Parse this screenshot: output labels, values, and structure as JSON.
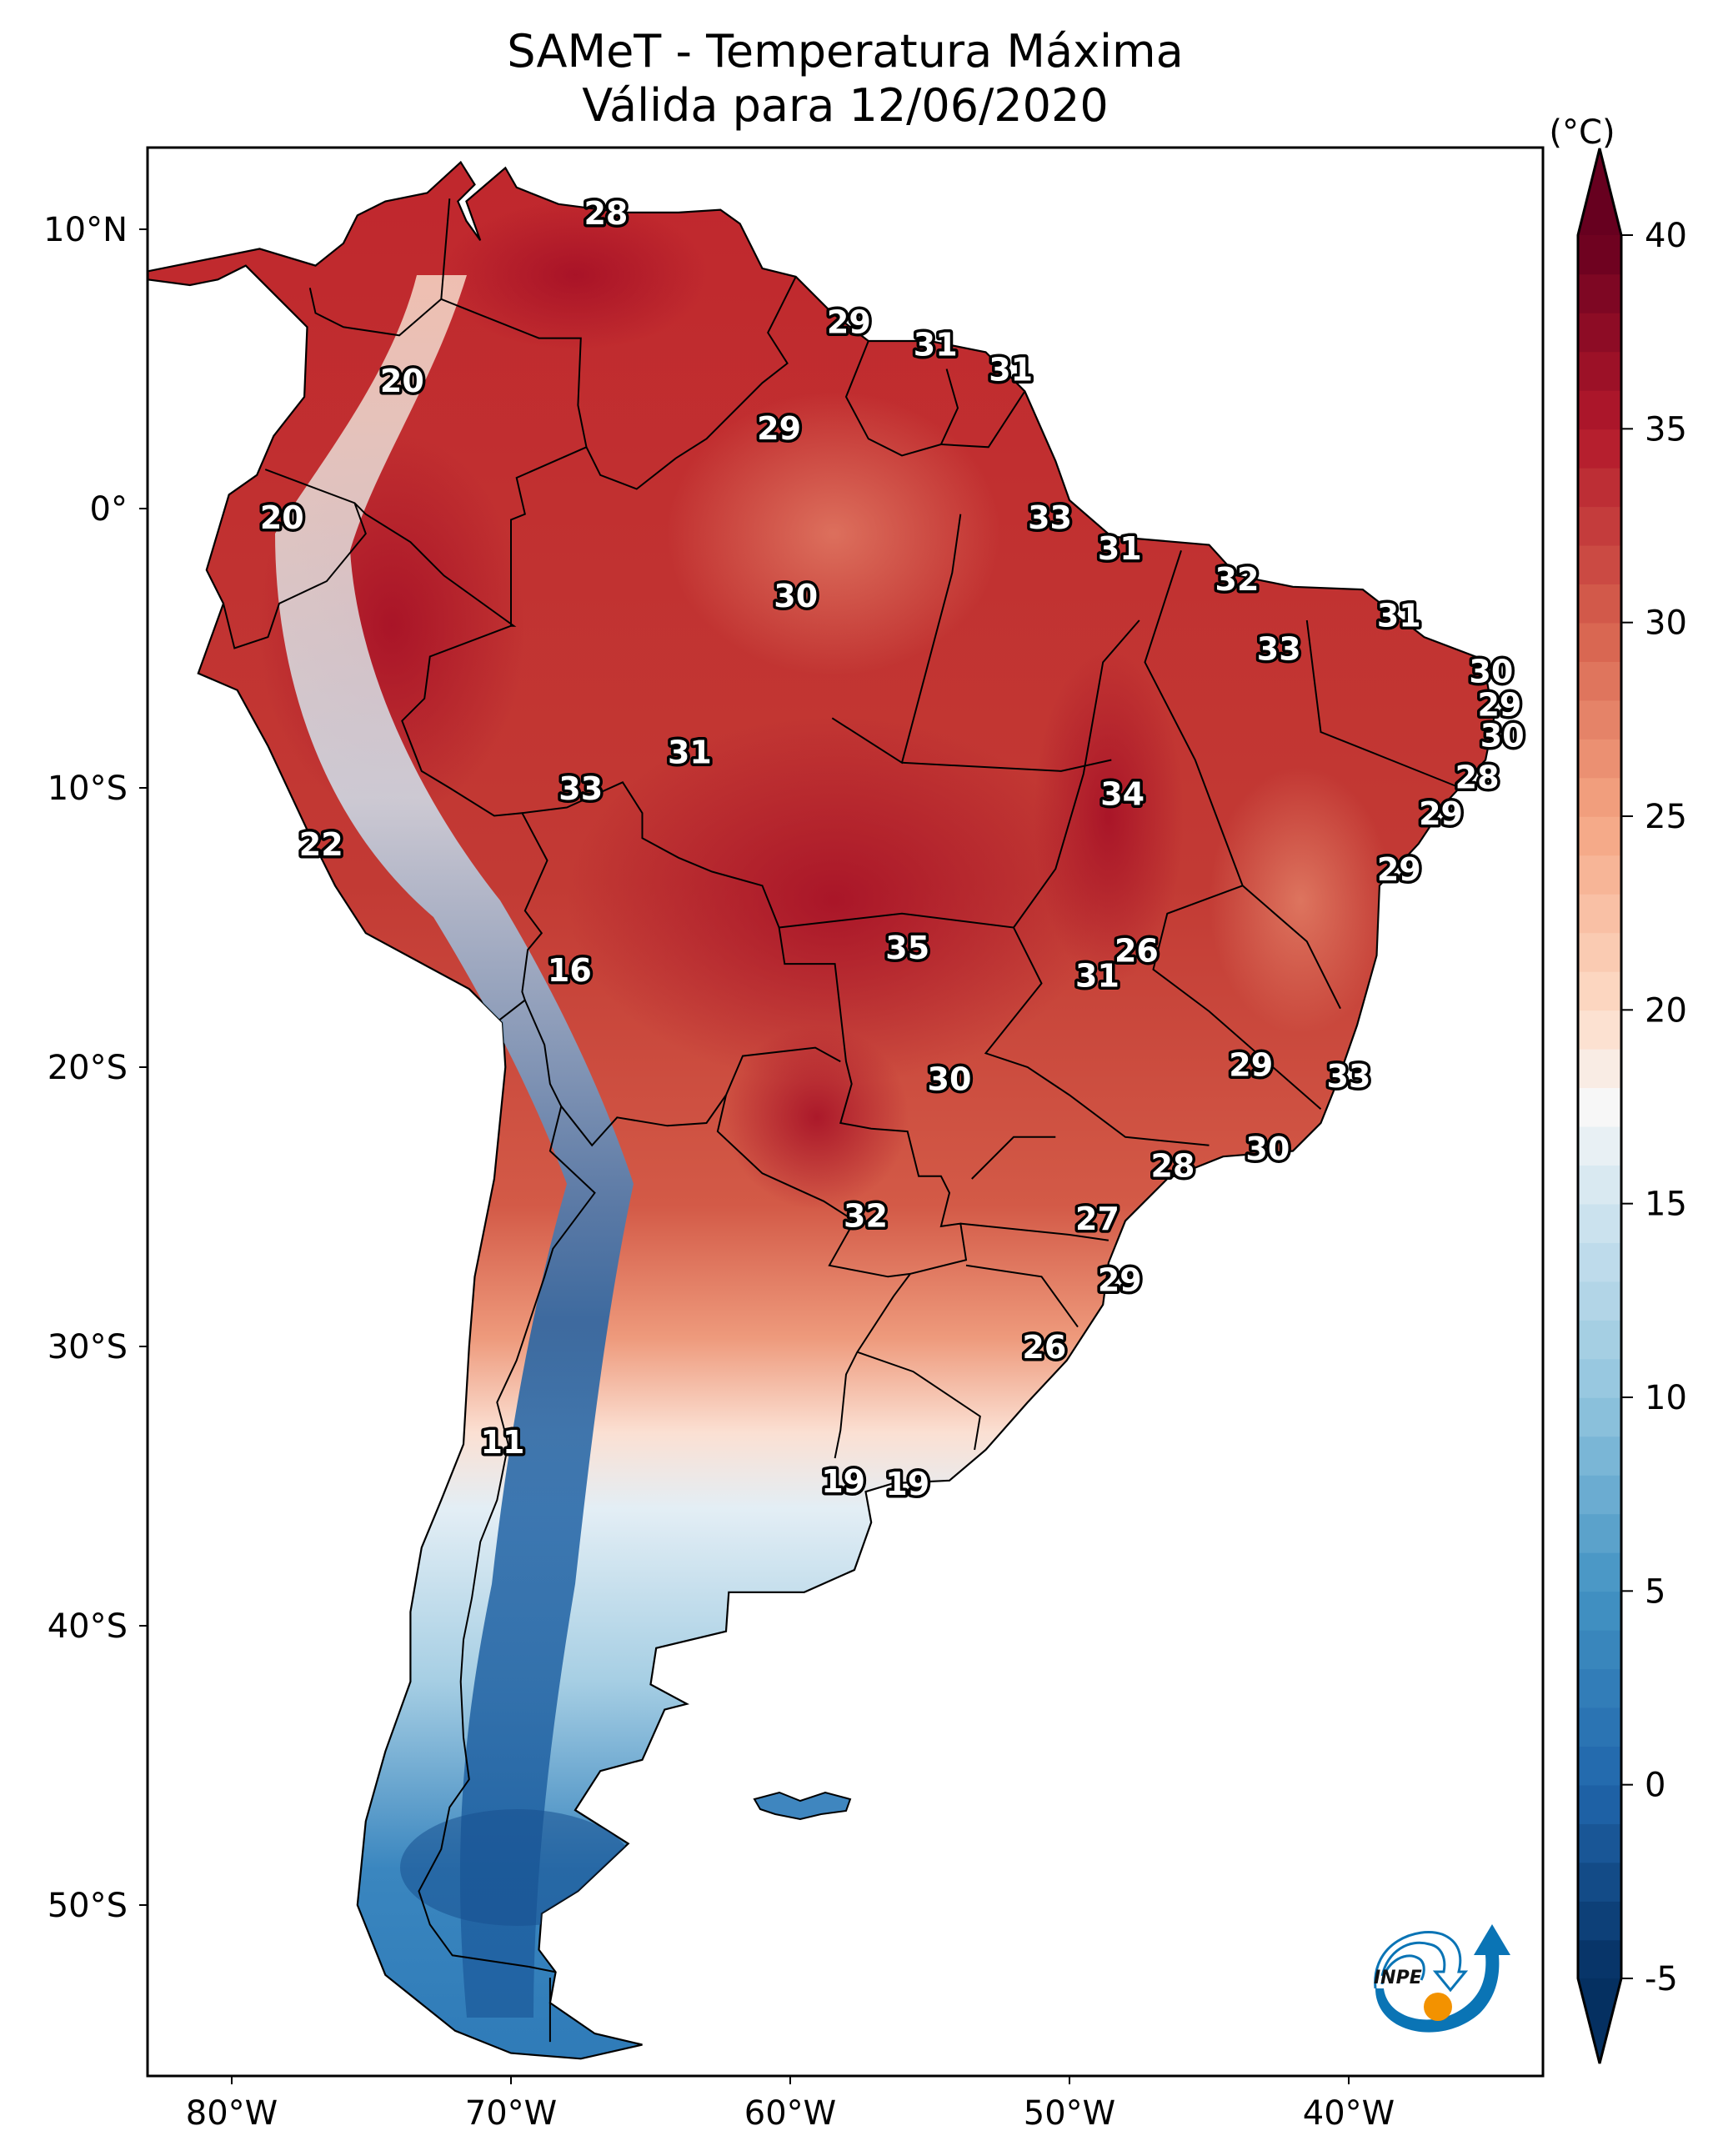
{
  "chart_data": {
    "type": "heatmap",
    "title": "SAMeT - Temperatura Máxima",
    "subtitle": "Válida para 12/06/2020",
    "variable": "Maximum temperature",
    "units_label": "(°C)",
    "xlabel": "",
    "ylabel": "",
    "xlim": [
      -83,
      -33
    ],
    "ylim": [
      -56,
      13
    ],
    "x_ticks": [
      -80,
      -70,
      -60,
      -50,
      -40
    ],
    "x_tick_labels": [
      "80°W",
      "70°W",
      "60°W",
      "50°W",
      "40°W"
    ],
    "y_ticks": [
      10,
      0,
      -10,
      -20,
      -30,
      -40,
      -50
    ],
    "y_tick_labels": [
      "10°N",
      "0°",
      "10°S",
      "20°S",
      "30°S",
      "40°S",
      "50°S"
    ],
    "grid": false,
    "colorbar": {
      "label": "(°C)",
      "colormap": "RdBu_r",
      "vmin": -5,
      "vmax": 40,
      "extend": "both",
      "ticks": [
        -5,
        0,
        5,
        10,
        15,
        20,
        25,
        30,
        35,
        40
      ],
      "tick_labels": [
        "-5",
        "0",
        "5",
        "10",
        "15",
        "20",
        "25",
        "30",
        "35",
        "40"
      ],
      "placement": "right",
      "stops": [
        {
          "value": -5,
          "color": "#053061"
        },
        {
          "value": 0,
          "color": "#2166ac"
        },
        {
          "value": 5,
          "color": "#4393c3"
        },
        {
          "value": 10,
          "color": "#92c5de"
        },
        {
          "value": 15,
          "color": "#d1e5f0"
        },
        {
          "value": 17.5,
          "color": "#f7f7f7"
        },
        {
          "value": 20,
          "color": "#fddbc7"
        },
        {
          "value": 25,
          "color": "#f4a582"
        },
        {
          "value": 30,
          "color": "#d6604d"
        },
        {
          "value": 35,
          "color": "#b2182b"
        },
        {
          "value": 40,
          "color": "#67001f"
        }
      ]
    },
    "point_labels": [
      {
        "lon": -66.6,
        "lat": 10.6,
        "value": 28
      },
      {
        "lon": -73.9,
        "lat": 4.6,
        "value": 20
      },
      {
        "lon": -57.9,
        "lat": 6.7,
        "value": 29
      },
      {
        "lon": -54.8,
        "lat": 5.9,
        "value": 31
      },
      {
        "lon": -52.1,
        "lat": 5.0,
        "value": 31
      },
      {
        "lon": -60.4,
        "lat": 2.9,
        "value": 29
      },
      {
        "lon": -78.2,
        "lat": -0.3,
        "value": 20
      },
      {
        "lon": -50.7,
        "lat": -0.3,
        "value": 33
      },
      {
        "lon": -48.2,
        "lat": -1.4,
        "value": 31
      },
      {
        "lon": -59.8,
        "lat": -3.1,
        "value": 30
      },
      {
        "lon": -44.0,
        "lat": -2.5,
        "value": 32
      },
      {
        "lon": -38.2,
        "lat": -3.8,
        "value": 31
      },
      {
        "lon": -42.5,
        "lat": -5.0,
        "value": 33
      },
      {
        "lon": -34.9,
        "lat": -5.8,
        "value": 30
      },
      {
        "lon": -34.6,
        "lat": -7.0,
        "value": 29
      },
      {
        "lon": -34.5,
        "lat": -8.1,
        "value": 30
      },
      {
        "lon": -63.6,
        "lat": -8.7,
        "value": 31
      },
      {
        "lon": -67.5,
        "lat": -10.0,
        "value": 33
      },
      {
        "lon": -48.1,
        "lat": -10.2,
        "value": 34
      },
      {
        "lon": -35.4,
        "lat": -9.6,
        "value": 28
      },
      {
        "lon": -36.7,
        "lat": -10.9,
        "value": 29
      },
      {
        "lon": -76.8,
        "lat": -12.0,
        "value": 22
      },
      {
        "lon": -38.2,
        "lat": -12.9,
        "value": 29
      },
      {
        "lon": -55.8,
        "lat": -15.7,
        "value": 35
      },
      {
        "lon": -47.6,
        "lat": -15.8,
        "value": 26
      },
      {
        "lon": -49.0,
        "lat": -16.7,
        "value": 31
      },
      {
        "lon": -67.9,
        "lat": -16.5,
        "value": 16
      },
      {
        "lon": -43.5,
        "lat": -19.9,
        "value": 29
      },
      {
        "lon": -54.3,
        "lat": -20.4,
        "value": 30
      },
      {
        "lon": -40.0,
        "lat": -20.3,
        "value": 33
      },
      {
        "lon": -42.9,
        "lat": -22.9,
        "value": 30
      },
      {
        "lon": -46.3,
        "lat": -23.5,
        "value": 28
      },
      {
        "lon": -57.3,
        "lat": -25.3,
        "value": 32
      },
      {
        "lon": -49.0,
        "lat": -25.4,
        "value": 27
      },
      {
        "lon": -48.2,
        "lat": -27.6,
        "value": 29
      },
      {
        "lon": -50.9,
        "lat": -30.0,
        "value": 26
      },
      {
        "lon": -70.3,
        "lat": -33.4,
        "value": 11
      },
      {
        "lon": -58.1,
        "lat": -34.8,
        "value": 19
      },
      {
        "lon": -55.8,
        "lat": -34.9,
        "value": 19
      }
    ]
  },
  "logo": {
    "text": "INPE"
  }
}
